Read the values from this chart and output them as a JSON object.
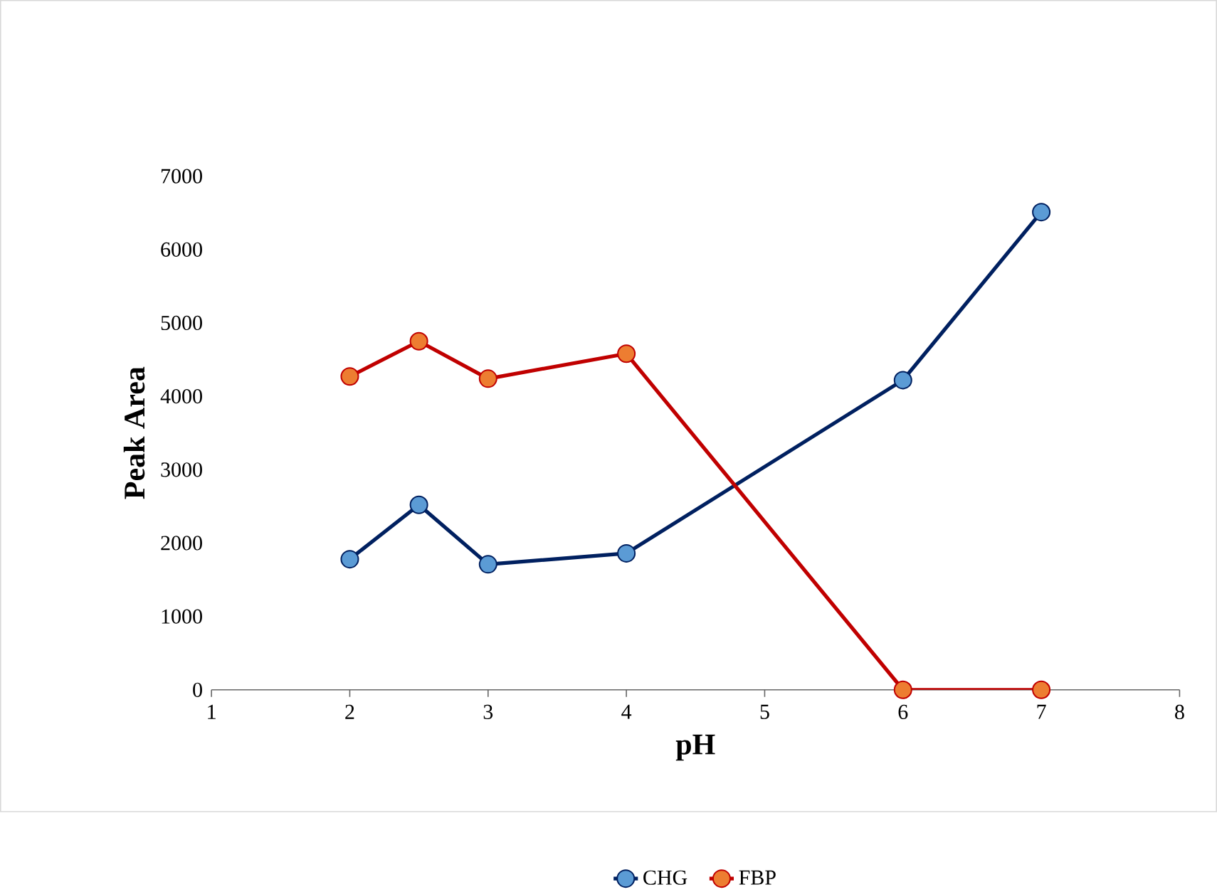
{
  "chart_data": {
    "type": "line",
    "xlabel": "pH",
    "ylabel": "Peak Area",
    "xlim": [
      1,
      8
    ],
    "xticks": [
      1,
      2,
      3,
      4,
      5,
      6,
      7,
      8
    ],
    "ylim": [
      0,
      7000
    ],
    "yticks": [
      0,
      1000,
      2000,
      3000,
      4000,
      5000,
      6000,
      7000
    ],
    "series": [
      {
        "name": "CHG",
        "color": "#002060",
        "x": [
          2,
          2.5,
          3,
          4,
          6,
          7
        ],
        "values": [
          1780,
          2520,
          1710,
          1860,
          4220,
          6510
        ]
      },
      {
        "name": "FBP",
        "color": "#c00000",
        "x": [
          2,
          2.5,
          3,
          4,
          6,
          7
        ],
        "values": [
          4270,
          4750,
          4240,
          4580,
          0,
          0
        ]
      }
    ],
    "marker": "circle",
    "line_style": "solid",
    "legend": "bottom",
    "grid": false
  }
}
